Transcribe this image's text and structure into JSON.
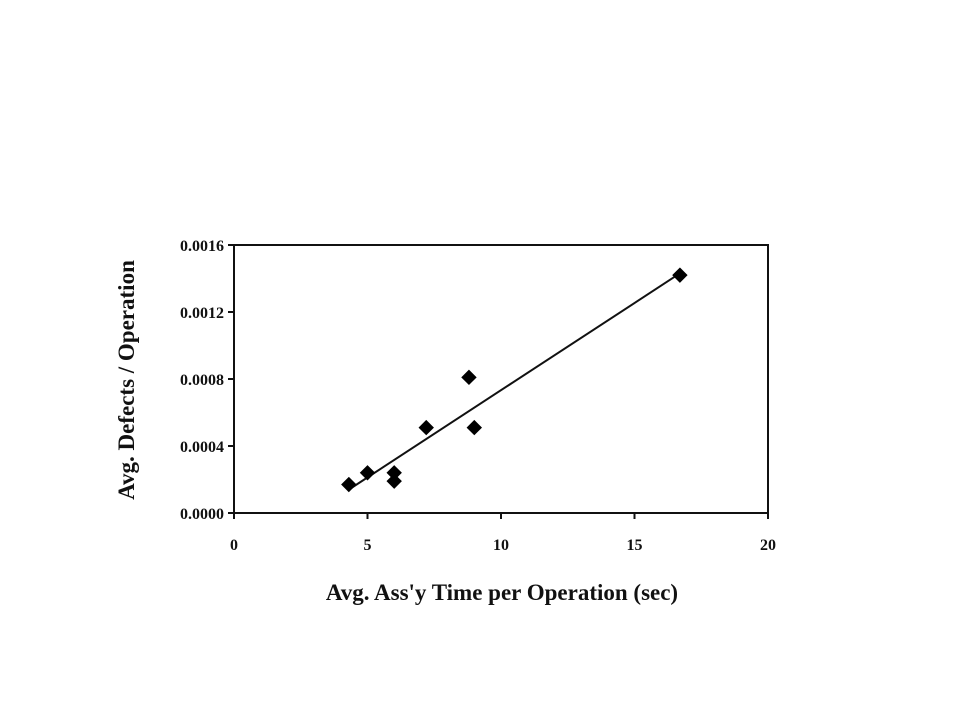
{
  "chart_data": {
    "type": "scatter",
    "title": "",
    "xlabel": "Avg. Ass'y Time per Operation (sec)",
    "ylabel": "Avg. Defects / Operation",
    "xlim": [
      0,
      20
    ],
    "ylim": [
      0,
      0.0016
    ],
    "x_ticks": [
      "0",
      "5",
      "10",
      "15",
      "20"
    ],
    "y_ticks": [
      "0.0000",
      "0.0004",
      "0.0008",
      "0.0012",
      "0.0016"
    ],
    "grid": false,
    "legend": "none",
    "series": [
      {
        "marker": "diamond",
        "color": "#000000",
        "points": [
          {
            "x": 4.3,
            "y": 0.00017
          },
          {
            "x": 5.0,
            "y": 0.00024
          },
          {
            "x": 6.0,
            "y": 0.00024
          },
          {
            "x": 6.0,
            "y": 0.00019
          },
          {
            "x": 7.2,
            "y": 0.00051
          },
          {
            "x": 8.8,
            "y": 0.00081
          },
          {
            "x": 9.0,
            "y": 0.00051
          },
          {
            "x": 16.7,
            "y": 0.00142
          }
        ]
      }
    ],
    "trendline": {
      "x": [
        4.4,
        16.5
      ],
      "y": [
        0.00015,
        0.00141
      ]
    }
  }
}
